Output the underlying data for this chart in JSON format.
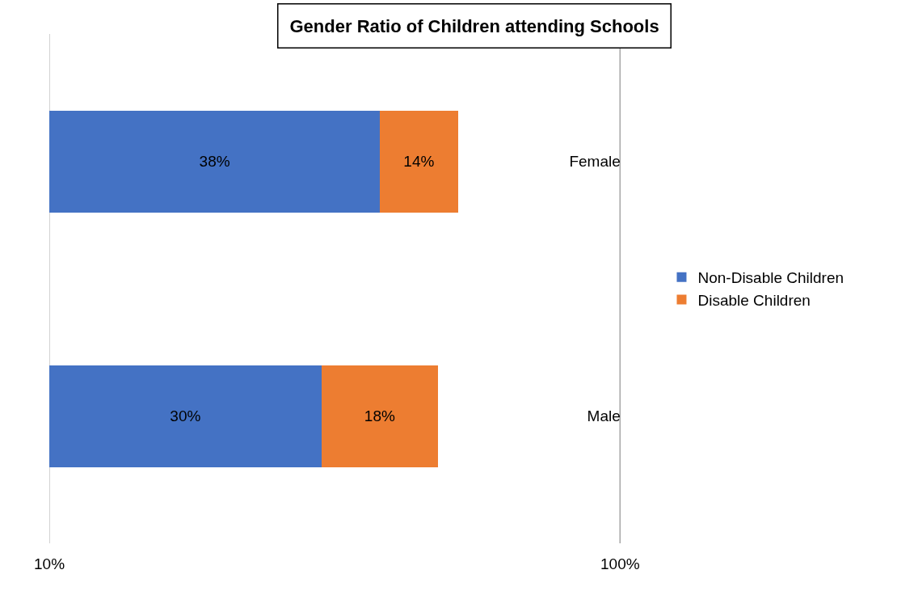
{
  "chart_data": {
    "type": "bar",
    "orientation": "horizontal",
    "stacked": true,
    "title": "Gender Ratio of Children attending Schools",
    "categories": [
      "Female",
      "Male"
    ],
    "series": [
      {
        "name": "Non-Disable Children",
        "color": "#4472c4",
        "values": [
          38,
          30
        ],
        "value_labels": [
          "38%",
          "30%"
        ]
      },
      {
        "name": "Disable Children",
        "color": "#ed7d31",
        "values": [
          14,
          18
        ],
        "value_labels": [
          "14%",
          "18%"
        ]
      }
    ],
    "log": "x",
    "xlim": [
      10,
      100
    ],
    "xticks": [
      {
        "value": 10,
        "label": "10%"
      },
      {
        "value": 100,
        "label": "100%"
      }
    ],
    "grid": "x",
    "legend": "right"
  }
}
